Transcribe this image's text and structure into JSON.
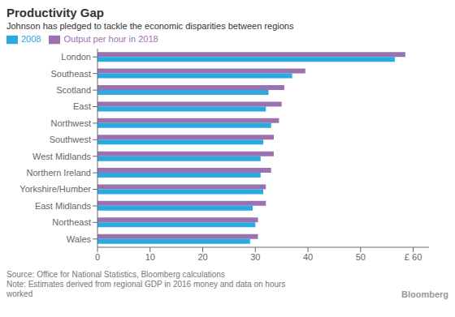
{
  "chart_data": {
    "type": "bar",
    "orientation": "horizontal",
    "title": "Productivity Gap",
    "subtitle": "Johnson has pledged to tackle the economic disparities between regions",
    "annotations": [
      "Source: Office for National Statistics, Bloomberg calculations",
      "Note: Estimates derived from regional GDP in 2016 money and data on hours\nworked",
      "Bloomberg"
    ],
    "categories": [
      "London",
      "Southeast",
      "Scotland",
      "East",
      "Northwest",
      "Southwest",
      "West Midlands",
      "Northern Ireland",
      "Yorkshire/Humber",
      "East Midlands",
      "Northeast",
      "Wales"
    ],
    "series": [
      {
        "name": "Output per hour in 2018",
        "color": "#9b72b0",
        "values": [
          58.5,
          39.5,
          35.5,
          35.0,
          34.5,
          33.5,
          33.5,
          33.0,
          32.0,
          32.0,
          30.5,
          30.5
        ]
      },
      {
        "name": "2008",
        "color": "#29aae1",
        "values": [
          56.5,
          37.0,
          32.5,
          32.0,
          33.0,
          31.5,
          31.0,
          31.0,
          31.5,
          29.5,
          30.0,
          29.0
        ]
      }
    ],
    "xlim": [
      0,
      63
    ],
    "xticks": [
      0,
      10,
      20,
      30,
      40,
      50,
      {
        "value": 60,
        "label": "£ 60"
      }
    ],
    "grid": false,
    "legend": "top"
  }
}
